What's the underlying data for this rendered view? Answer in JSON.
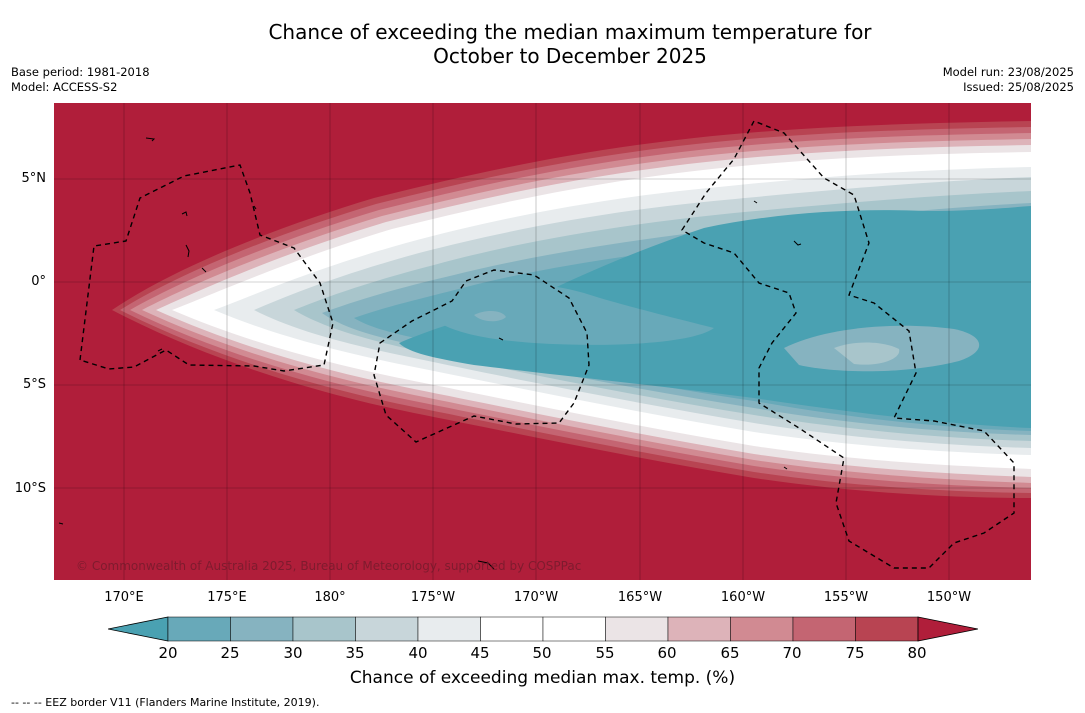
{
  "title_line1": "Chance of exceeding the median maximum temperature for",
  "title_line2": "October to December 2025",
  "base_period": "Base period: 1981-2018",
  "model": "Model: ACCESS-S2",
  "model_run": "Model run: 23/08/2025",
  "issued": "Issued: 25/08/2025",
  "map": {
    "lat_ticks": [
      "5°N",
      "0°",
      "5°S",
      "10°S"
    ],
    "lon_ticks": [
      "170°E",
      "175°E",
      "180°",
      "175°W",
      "170°W",
      "165°W",
      "160°W",
      "155°W",
      "150°W"
    ],
    "copyright": "© Commonwealth of Australia 2025, Bureau of Meteorology, supported by COSPPac"
  },
  "colorbar": {
    "ticks": [
      "20",
      "25",
      "30",
      "35",
      "40",
      "45",
      "50",
      "55",
      "60",
      "65",
      "70",
      "75",
      "80"
    ],
    "label": "Chance of exceeding median max. temp. (%)",
    "colors": [
      "#4aa1b2",
      "#68a9b9",
      "#86b3c0",
      "#a8c5cb",
      "#c8d6da",
      "#e8ecee",
      "#ffffff",
      "#ffffff",
      "#ebe4e6",
      "#ddb3b9",
      "#d18a92",
      "#c46572",
      "#b84452",
      "#b01e3a"
    ]
  },
  "footnote": "--  --  -- EEZ border V11 (Flanders Marine Institute, 2019)."
}
